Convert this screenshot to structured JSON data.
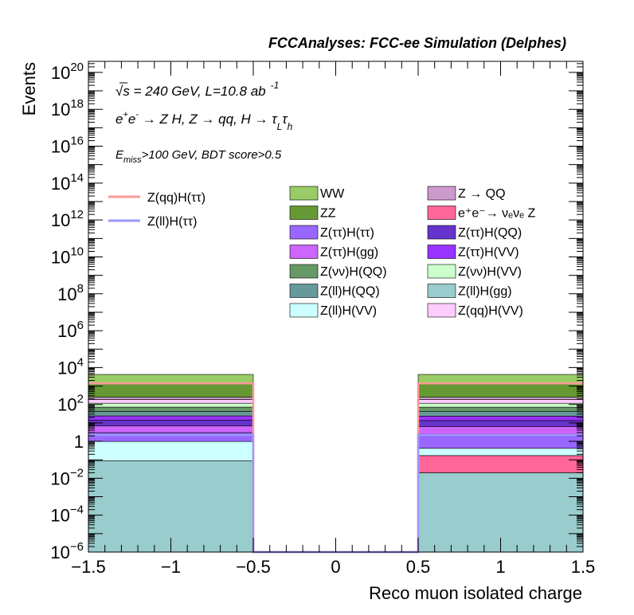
{
  "chart_data": {
    "type": "histogram",
    "header": "FCCAnalyses: FCC-ee Simulation (Delphes)",
    "xlabel": "Reco muon isolated charge",
    "ylabel": "Events",
    "xlim": [
      -1.5,
      1.5
    ],
    "ylim_log10": [
      -6,
      20.6
    ],
    "yscale": "log",
    "x_ticks": [
      -1.5,
      -1,
      -0.5,
      0,
      0.5,
      1,
      1.5
    ],
    "x_tick_labels": [
      "−1.5",
      "−1",
      "−0.5",
      "0",
      "0.5",
      "1",
      "1.5"
    ],
    "y_tick_exponents": [
      -6,
      -4,
      -2,
      0,
      2,
      4,
      6,
      8,
      10,
      12,
      14,
      16,
      18,
      20
    ],
    "y_tick_labels": {
      "-6": {
        "base": "10",
        "exp": "−6"
      },
      "-4": {
        "base": "10",
        "exp": "−4"
      },
      "-2": {
        "base": "10",
        "exp": "−2"
      },
      "0": {
        "base": "1",
        "exp": ""
      },
      "2": {
        "base": "10",
        "exp": "2"
      },
      "4": {
        "base": "10",
        "exp": "4"
      },
      "6": {
        "base": "10",
        "exp": "6"
      },
      "8": {
        "base": "10",
        "exp": "8"
      },
      "10": {
        "base": "10",
        "exp": "10"
      },
      "12": {
        "base": "10",
        "exp": "12"
      },
      "14": {
        "base": "10",
        "exp": "14"
      },
      "16": {
        "base": "10",
        "exp": "16"
      },
      "18": {
        "base": "10",
        "exp": "18"
      },
      "20": {
        "base": "10",
        "exp": "20"
      }
    },
    "bins": [
      [
        -1.5,
        -0.5
      ],
      [
        -0.5,
        0.5
      ],
      [
        0.5,
        1.5
      ]
    ],
    "annotations": {
      "line1_sqrt": "√s",
      "line1_rest": " = 240 GeV, L=10.8 ab",
      "line1_sup": "-1",
      "line2_a": "e",
      "line2_sup1": "+",
      "line2_b": "e",
      "line2_sup2": "-",
      "line2_c": " → Z H, Z  → qq, H  →  τ",
      "line2_sub1": "L",
      "line2_d": "τ",
      "line2_sub2": "h",
      "line3_a": "E",
      "line3_sub": "miss",
      "line3_b": ">100 GeV, BDT score>0.5"
    },
    "stacked_backgrounds": [
      {
        "name": "Z(ll)H(gg)",
        "color": "#99cccc",
        "values": [
          0.09,
          0,
          0.02
        ]
      },
      {
        "name": "e⁺e⁻→ νₑνₑ Z",
        "color": "#ff6699",
        "values": [
          0,
          0,
          0.15
        ]
      },
      {
        "name": "Z(ll)H(VV)",
        "color": "#ccffff",
        "values": [
          0.9,
          0,
          0.25
        ]
      },
      {
        "name": "Z(ττ)H(ττ)",
        "color": "#9966ff",
        "values": [
          2,
          0,
          2
        ]
      },
      {
        "name": "Z(ττ)H(gg)",
        "color": "#cc66ff",
        "values": [
          4,
          0,
          4
        ]
      },
      {
        "name": "Z(ττ)H(QQ)",
        "color": "#6633cc",
        "values": [
          7,
          0,
          7
        ]
      },
      {
        "name": "Z(ττ)H(VV)",
        "color": "#9933ff",
        "values": [
          10,
          0,
          10
        ]
      },
      {
        "name": "Z(ll)H(QQ)",
        "color": "#669999",
        "values": [
          18,
          0,
          18
        ]
      },
      {
        "name": "Z(νν)H(QQ)",
        "color": "#669966",
        "values": [
          30,
          0,
          30
        ]
      },
      {
        "name": "Z(νν)H(VV)",
        "color": "#ccffcc",
        "values": [
          45,
          0,
          45
        ]
      },
      {
        "name": "Z(qq)H(VV)",
        "color": "#ffccff",
        "values": [
          70,
          0,
          70
        ]
      },
      {
        "name": "Z → QQ",
        "color": "#cc99cc",
        "values": [
          60,
          0,
          60
        ]
      },
      {
        "name": "ZZ",
        "color": "#669933",
        "values": [
          1200,
          0,
          1200
        ]
      },
      {
        "name": "WW",
        "color": "#99cc66",
        "values": [
          2800,
          0,
          2800
        ]
      }
    ],
    "signals": [
      {
        "name": "Z(qq)H(ττ)",
        "color": "#ff9999",
        "values": [
          1400,
          0,
          1400
        ]
      },
      {
        "name": "Z(ll)H(ττ)",
        "color": "#9999ff",
        "values": [
          2.2,
          0,
          2.2
        ]
      }
    ],
    "legend_signals": [
      {
        "name": "Z(qq)H(ττ)",
        "color": "#ff9999"
      },
      {
        "name": "Z(ll)H(ττ)",
        "color": "#9999ff"
      }
    ],
    "legend_col1": [
      {
        "name": "WW",
        "color": "#99cc66"
      },
      {
        "name": "ZZ",
        "color": "#669933"
      },
      {
        "name": "Z(ττ)H(ττ)",
        "color": "#9966ff"
      },
      {
        "name": "Z(ττ)H(gg)",
        "color": "#cc66ff"
      },
      {
        "name": "Z(νν)H(QQ)",
        "color": "#669966"
      },
      {
        "name": "Z(ll)H(QQ)",
        "color": "#669999"
      },
      {
        "name": "Z(ll)H(VV)",
        "color": "#ccffff"
      }
    ],
    "legend_col2": [
      {
        "name": "Z → QQ",
        "color": "#cc99cc"
      },
      {
        "name": "e⁺e⁻→ νₑνₑ Z",
        "color": "#ff6699"
      },
      {
        "name": "Z(ττ)H(QQ)",
        "color": "#6633cc"
      },
      {
        "name": "Z(ττ)H(VV)",
        "color": "#9933ff"
      },
      {
        "name": "Z(νν)H(VV)",
        "color": "#ccffcc"
      },
      {
        "name": "Z(ll)H(gg)",
        "color": "#99cccc"
      },
      {
        "name": "Z(qq)H(VV)",
        "color": "#ffccff"
      }
    ]
  }
}
